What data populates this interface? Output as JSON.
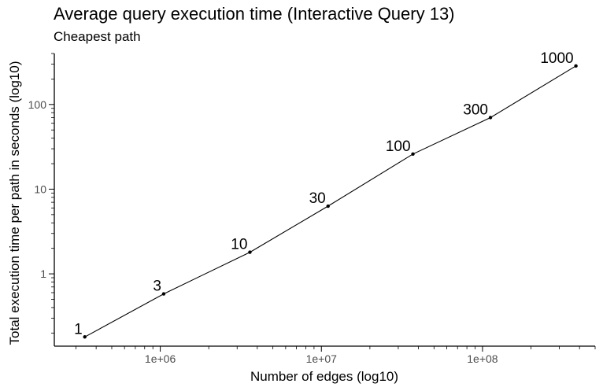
{
  "chart_data": {
    "type": "line",
    "title": "Average query execution time (Interactive Query 13)",
    "subtitle": "Cheapest path",
    "xlabel": "Number of edges (log10)",
    "ylabel": "Total execution time per path in seconds (log10)",
    "x_scale": "log10",
    "y_scale": "log10",
    "xlim": [
      220000,
      500000000
    ],
    "ylim": [
      0.14,
      400
    ],
    "x_ticks": [
      {
        "value": 1000000,
        "label": "1e+06"
      },
      {
        "value": 10000000,
        "label": "1e+07"
      },
      {
        "value": 100000000,
        "label": "1e+08"
      }
    ],
    "y_ticks": [
      {
        "value": 1,
        "label": "1"
      },
      {
        "value": 10,
        "label": "10"
      },
      {
        "value": 100,
        "label": "100"
      }
    ],
    "grid": false,
    "legend": "none",
    "series": [
      {
        "points": [
          {
            "x": 340000,
            "y": 0.18,
            "label": "1"
          },
          {
            "x": 1050000,
            "y": 0.58,
            "label": "3"
          },
          {
            "x": 3600000,
            "y": 1.8,
            "label": "10"
          },
          {
            "x": 11000000,
            "y": 6.3,
            "label": "30"
          },
          {
            "x": 37000000,
            "y": 26,
            "label": "100"
          },
          {
            "x": 112000000,
            "y": 70,
            "label": "300"
          },
          {
            "x": 380000000,
            "y": 285,
            "label": "1000"
          }
        ]
      }
    ]
  }
}
